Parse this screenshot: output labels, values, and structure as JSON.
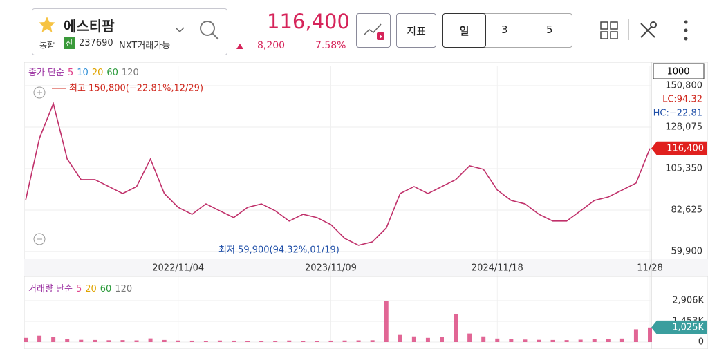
{
  "header": {
    "name": "에스티팜",
    "market": "통합",
    "badge": "신",
    "code": "237690",
    "nxt": "NXT거래가능",
    "price": "116,400",
    "change": "8,200",
    "change_pct": "7.58%",
    "indicator_button": "지표",
    "periods": [
      "일",
      "3",
      "5"
    ],
    "range_box": "1000"
  },
  "chart_data": [
    {
      "type": "line",
      "legend_title": "종가 단순",
      "color": "#c0306a",
      "legend_items": [
        {
          "name": "5",
          "color": "#e0408a"
        },
        {
          "name": "10",
          "color": "#2f8fd8"
        },
        {
          "name": "20",
          "color": "#e0a400"
        },
        {
          "name": "60",
          "color": "#2a9a3a"
        },
        {
          "name": "120",
          "color": "#777777"
        }
      ],
      "categories": [
        null,
        null,
        null,
        null,
        null,
        null,
        null,
        null,
        null,
        null,
        null,
        "2022/11/04",
        null,
        null,
        null,
        null,
        null,
        null,
        null,
        null,
        null,
        null,
        "2023/11/09",
        null,
        null,
        null,
        null,
        null,
        null,
        null,
        null,
        null,
        null,
        null,
        "2024/11/18",
        null,
        null,
        null,
        null,
        null,
        null,
        null,
        null,
        null,
        null,
        "11/28"
      ],
      "values": [
        87900,
        122000,
        141000,
        110600,
        99300,
        99300,
        95500,
        91700,
        95500,
        110600,
        91700,
        84100,
        80300,
        86000,
        82200,
        78500,
        84100,
        86000,
        82200,
        76600,
        80300,
        78500,
        74700,
        67100,
        63300,
        65200,
        72800,
        91700,
        95500,
        91700,
        95500,
        99300,
        106900,
        105000,
        93600,
        87900,
        86000,
        80300,
        76600,
        76600,
        82200,
        87900,
        89800,
        93600,
        97400,
        116400
      ],
      "ylim": [
        55700,
        161800
      ],
      "yticks": [
        {
          "value": 59900,
          "label": "59,900"
        },
        {
          "value": 82625,
          "label": "82,625"
        },
        {
          "value": 105350,
          "label": "105,350"
        },
        {
          "value": 128075,
          "label": "128,075"
        },
        {
          "value": 150800,
          "label": "150,800"
        }
      ],
      "annotations": {
        "high": "최고 150,800(−22.81%,12/29)",
        "low": "최저 59,900(94.32%,01/19)",
        "lc": "LC:94.32",
        "hc": "HC:−22.81",
        "current": "116,400"
      }
    },
    {
      "type": "bar",
      "legend_title": "거래량 단순",
      "color": "#d9407a",
      "legend_items": [
        {
          "name": "5",
          "color": "#e0408a"
        },
        {
          "name": "20",
          "color": "#e0a400"
        },
        {
          "name": "60",
          "color": "#2a9a3a"
        },
        {
          "name": "120",
          "color": "#777777"
        }
      ],
      "values": [
        300,
        450,
        350,
        200,
        160,
        150,
        130,
        140,
        120,
        260,
        150,
        110,
        100,
        90,
        110,
        100,
        90,
        80,
        90,
        110,
        90,
        80,
        100,
        110,
        120,
        130,
        2880,
        500,
        400,
        300,
        350,
        1950,
        600,
        400,
        250,
        200,
        180,
        160,
        150,
        140,
        170,
        200,
        220,
        250,
        900,
        1025
      ],
      "ylim": [
        0,
        4360
      ],
      "yticks": [
        0,
        {
          "value": 1453,
          "label": "1,453K"
        },
        {
          "value": 2906,
          "label": "2,906K"
        }
      ],
      "annotations": {
        "current": "1,025K"
      }
    }
  ]
}
